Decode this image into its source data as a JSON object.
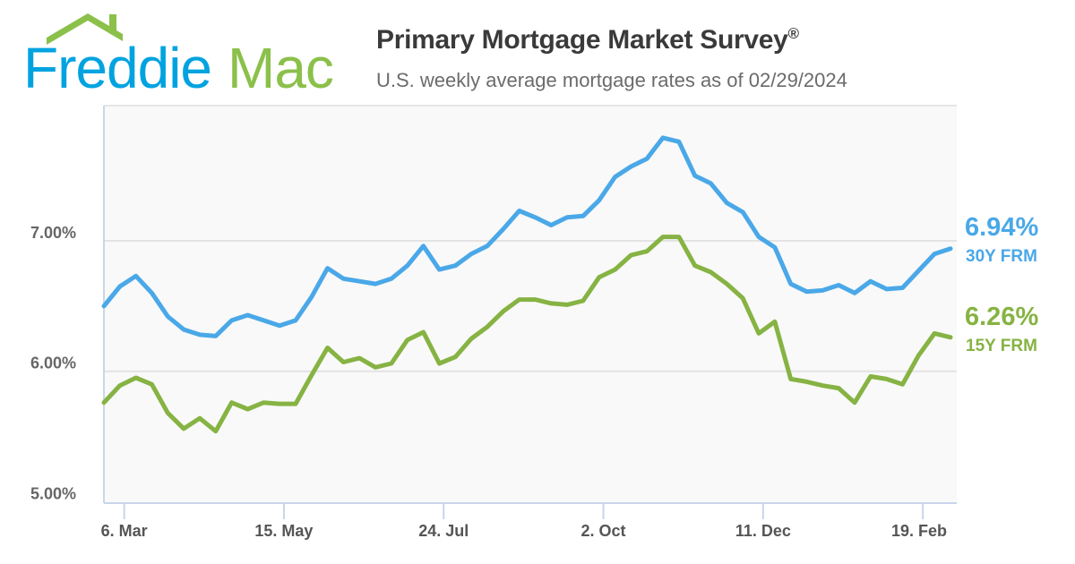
{
  "logo": {
    "text_part1": "Freddie",
    "text_part2": "Mac",
    "blue": "#00a3e0",
    "green": "#8bc04a",
    "icon": "house-roof-icon"
  },
  "header": {
    "title": "Primary Mortgage Market Survey",
    "title_mark": "®",
    "subtitle": "U.S. weekly average mortgage rates as of 02/29/2024"
  },
  "chart_data": {
    "type": "line",
    "title": "Primary Mortgage Market Survey®",
    "subtitle": "U.S. weekly average mortgage rates as of 02/29/2024",
    "xlabel": "",
    "ylabel": "",
    "ylim": [
      5.0,
      8.05
    ],
    "yticks": [
      {
        "value": 5,
        "label": "5.00%"
      },
      {
        "value": 6,
        "label": "6.00%"
      },
      {
        "value": 7,
        "label": "7.00%"
      }
    ],
    "xticks": [
      "6. Mar",
      "15. May",
      "24. Jul",
      "2. Oct",
      "11. Dec",
      "19. Feb"
    ],
    "grid": true,
    "x": [
      "2023-02-23",
      "2023-03-02",
      "2023-03-09",
      "2023-03-16",
      "2023-03-23",
      "2023-03-30",
      "2023-04-06",
      "2023-04-13",
      "2023-04-20",
      "2023-04-27",
      "2023-05-04",
      "2023-05-11",
      "2023-05-18",
      "2023-05-25",
      "2023-06-01",
      "2023-06-08",
      "2023-06-15",
      "2023-06-22",
      "2023-06-29",
      "2023-07-06",
      "2023-07-13",
      "2023-07-20",
      "2023-07-27",
      "2023-08-03",
      "2023-08-10",
      "2023-08-17",
      "2023-08-24",
      "2023-08-31",
      "2023-09-07",
      "2023-09-14",
      "2023-09-21",
      "2023-09-28",
      "2023-10-05",
      "2023-10-12",
      "2023-10-19",
      "2023-10-26",
      "2023-11-02",
      "2023-11-09",
      "2023-11-16",
      "2023-11-22",
      "2023-11-30",
      "2023-12-07",
      "2023-12-14",
      "2023-12-21",
      "2023-12-28",
      "2024-01-04",
      "2024-01-11",
      "2024-01-18",
      "2024-01-25",
      "2024-02-01",
      "2024-02-08",
      "2024-02-15",
      "2024-02-22",
      "2024-02-29"
    ],
    "series": [
      {
        "name": "30Y FRM",
        "color": "#4aa8e8",
        "last_label": "6.94%",
        "values": [
          6.5,
          6.65,
          6.73,
          6.6,
          6.42,
          6.32,
          6.28,
          6.27,
          6.39,
          6.43,
          6.39,
          6.35,
          6.39,
          6.57,
          6.79,
          6.71,
          6.69,
          6.67,
          6.71,
          6.81,
          6.96,
          6.78,
          6.81,
          6.9,
          6.96,
          7.09,
          7.23,
          7.18,
          7.12,
          7.18,
          7.19,
          7.31,
          7.49,
          7.57,
          7.63,
          7.79,
          7.76,
          7.5,
          7.44,
          7.29,
          7.22,
          7.03,
          6.95,
          6.67,
          6.61,
          6.62,
          6.66,
          6.6,
          6.69,
          6.63,
          6.64,
          6.77,
          6.9,
          6.94
        ]
      },
      {
        "name": "15Y FRM",
        "color": "#86b343",
        "last_label": "6.26%",
        "values": [
          5.76,
          5.89,
          5.95,
          5.9,
          5.68,
          5.56,
          5.64,
          5.54,
          5.76,
          5.71,
          5.76,
          5.75,
          5.75,
          5.97,
          6.18,
          6.07,
          6.1,
          6.03,
          6.06,
          6.24,
          6.3,
          6.06,
          6.11,
          6.25,
          6.34,
          6.46,
          6.55,
          6.55,
          6.52,
          6.51,
          6.54,
          6.72,
          6.78,
          6.89,
          6.92,
          7.03,
          7.03,
          6.81,
          6.76,
          6.67,
          6.56,
          6.29,
          6.38,
          5.94,
          5.92,
          5.89,
          5.87,
          5.76,
          5.96,
          5.94,
          5.9,
          6.12,
          6.29,
          6.26
        ]
      }
    ],
    "legend": "right-end-labels"
  }
}
